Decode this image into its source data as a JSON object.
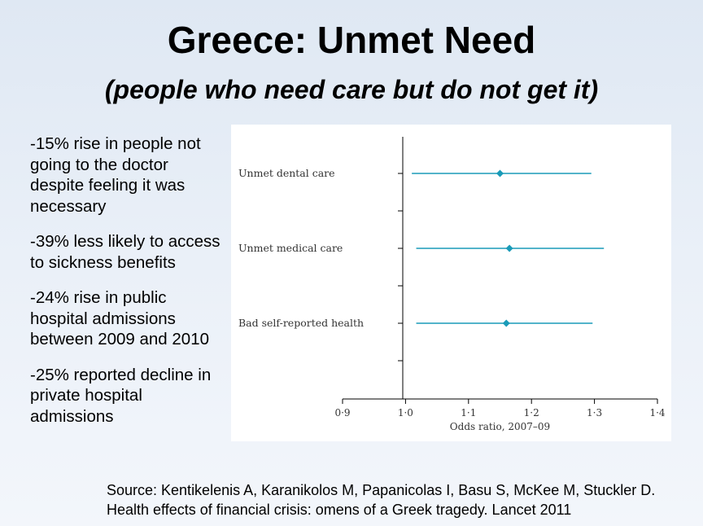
{
  "slide": {
    "title": "Greece: Unmet Need",
    "subtitle": "(people who need care but do not get it)",
    "bullets": [
      "-15% rise in people not going to the doctor despite feeling it was necessary",
      "-39% less likely to access to sickness benefits",
      "-24% rise in public hospital admissions between 2009 and 2010",
      "-25% reported decline in private hospital admissions"
    ],
    "source_lines": [
      "Source: Kentikelenis A, Karanikolos M, Papanicolas I, Basu S, McKee M, Stuckler D.",
      "Health effects of financial crisis: omens of a Greek tragedy. Lancet 2011"
    ]
  },
  "colors": {
    "series": "#1a9bb8",
    "axis": "#000000",
    "label_text": "#333333"
  },
  "chart_data": {
    "type": "scatter",
    "subtype": "forest-plot",
    "title": "",
    "xlabel": "Odds ratio, 2007–09",
    "ylabel": "",
    "xlim": [
      0.9,
      1.4
    ],
    "x_ticks": [
      0.9,
      1.0,
      1.1,
      1.2,
      1.3,
      1.4
    ],
    "x_tick_labels": [
      "0·9",
      "1·0",
      "1·1",
      "1·2",
      "1·3",
      "1·4"
    ],
    "grid": false,
    "legend": "none",
    "categories": [
      "Unmet dental care",
      "Unmet medical care",
      "Bad self-reported health"
    ],
    "estimates": [
      1.15,
      1.165,
      1.16
    ],
    "ci_lower": [
      1.01,
      1.017,
      1.017
    ],
    "ci_upper": [
      1.295,
      1.315,
      1.297
    ]
  }
}
